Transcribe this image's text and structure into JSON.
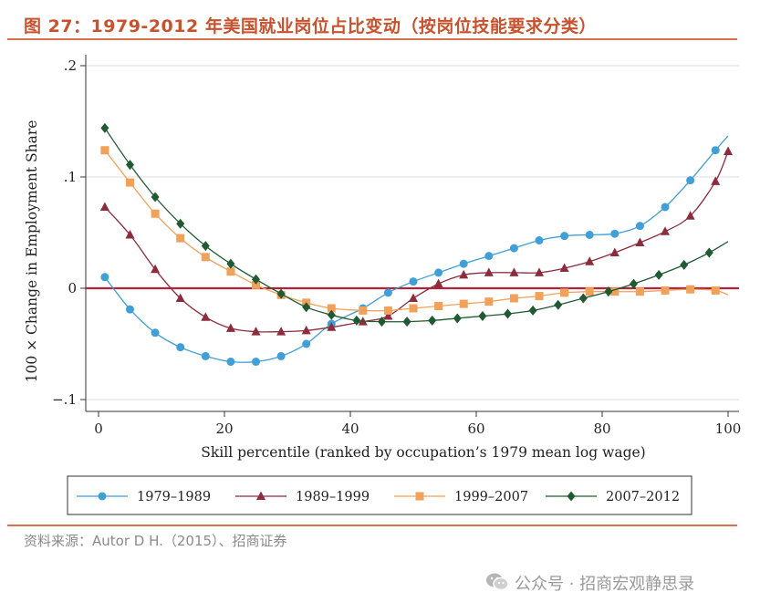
{
  "header": {
    "title": "图 27：1979-2012 年美国就业岗位占比变动（按岗位技能要求分类）"
  },
  "source": "资料来源：Autor D H.（2015）、招商证券",
  "watermark": {
    "icon": "wechat-icon",
    "text": "公众号 · 招商宏观静思录"
  },
  "colors": {
    "accent": "#c8522d",
    "rule": "#d9704f",
    "zero_line": "#b0233a"
  },
  "chart_data": {
    "type": "line",
    "title": "1979-2012 年美国就业岗位占比变动（按岗位技能要求分类）",
    "xlabel": "Skill percentile (ranked by occupation’s 1979 mean log wage)",
    "ylabel": "100 × Change in Employment Share",
    "xlim": [
      0,
      100
    ],
    "ylim": [
      -0.1,
      0.2
    ],
    "xticks": [
      0,
      20,
      40,
      60,
      80,
      100
    ],
    "yticks": [
      -0.1,
      0,
      0.1,
      0.2
    ],
    "ytick_labels": [
      "−.1",
      "0",
      ".1",
      ".2"
    ],
    "x": [
      1,
      5,
      9,
      13,
      17,
      21,
      25,
      29,
      33,
      37,
      41,
      45,
      49,
      53,
      57,
      61,
      65,
      69,
      73,
      77,
      81,
      85,
      89,
      93,
      97
    ],
    "series": [
      {
        "name": "1979–1989",
        "color": "#3f9fd6",
        "marker": "circle",
        "markers": [
          [
            1,
            0.01
          ],
          [
            5,
            -0.019
          ],
          [
            9,
            -0.04
          ],
          [
            13,
            -0.053
          ],
          [
            17,
            -0.061
          ],
          [
            21,
            -0.066
          ],
          [
            25,
            -0.066
          ],
          [
            29,
            -0.061
          ],
          [
            33,
            -0.05
          ],
          [
            37,
            -0.032
          ],
          [
            42,
            -0.018
          ],
          [
            46,
            -0.004
          ],
          [
            50,
            0.006
          ],
          [
            54,
            0.014
          ],
          [
            58,
            0.022
          ],
          [
            62,
            0.029
          ],
          [
            66,
            0.036
          ],
          [
            70,
            0.043
          ],
          [
            74,
            0.047
          ],
          [
            78,
            0.048
          ],
          [
            82,
            0.049
          ],
          [
            86,
            0.056
          ],
          [
            90,
            0.073
          ],
          [
            94,
            0.097
          ],
          [
            98,
            0.124
          ]
        ],
        "line_end": [
          100,
          0.137
        ]
      },
      {
        "name": "1989–1999",
        "color": "#8c2c3c",
        "marker": "triangle",
        "markers": [
          [
            1,
            0.073
          ],
          [
            5,
            0.048
          ],
          [
            9,
            0.017
          ],
          [
            13,
            -0.009
          ],
          [
            17,
            -0.026
          ],
          [
            21,
            -0.036
          ],
          [
            25,
            -0.039
          ],
          [
            29,
            -0.039
          ],
          [
            33,
            -0.038
          ],
          [
            37,
            -0.035
          ],
          [
            42,
            -0.03
          ],
          [
            46,
            -0.025
          ],
          [
            50,
            -0.009
          ],
          [
            54,
            0.004
          ],
          [
            58,
            0.012
          ],
          [
            62,
            0.014
          ],
          [
            66,
            0.014
          ],
          [
            70,
            0.014
          ],
          [
            74,
            0.018
          ],
          [
            78,
            0.024
          ],
          [
            82,
            0.032
          ],
          [
            86,
            0.041
          ],
          [
            90,
            0.051
          ],
          [
            94,
            0.065
          ],
          [
            98,
            0.096
          ],
          [
            100,
            0.123
          ]
        ]
      },
      {
        "name": "1999–2007",
        "color": "#f2a15a",
        "marker": "square",
        "markers": [
          [
            1,
            0.124
          ],
          [
            5,
            0.095
          ],
          [
            9,
            0.067
          ],
          [
            13,
            0.045
          ],
          [
            17,
            0.028
          ],
          [
            21,
            0.015
          ],
          [
            25,
            0.003
          ],
          [
            29,
            -0.006
          ],
          [
            33,
            -0.013
          ],
          [
            37,
            -0.018
          ],
          [
            42,
            -0.02
          ],
          [
            46,
            -0.02
          ],
          [
            50,
            -0.018
          ],
          [
            54,
            -0.016
          ],
          [
            58,
            -0.014
          ],
          [
            62,
            -0.012
          ],
          [
            66,
            -0.009
          ],
          [
            70,
            -0.007
          ],
          [
            74,
            -0.004
          ],
          [
            78,
            -0.003
          ],
          [
            82,
            -0.003
          ],
          [
            86,
            -0.003
          ],
          [
            90,
            -0.002
          ],
          [
            94,
            -0.001
          ],
          [
            98,
            -0.002
          ]
        ],
        "line_end": [
          100,
          -0.006
        ]
      },
      {
        "name": "2007–2012",
        "color": "#1f5a32",
        "marker": "diamond",
        "markers": [
          [
            1,
            0.144
          ],
          [
            5,
            0.111
          ],
          [
            9,
            0.082
          ],
          [
            13,
            0.058
          ],
          [
            17,
            0.038
          ],
          [
            21,
            0.022
          ],
          [
            25,
            0.008
          ],
          [
            29,
            -0.005
          ],
          [
            33,
            -0.017
          ],
          [
            37,
            -0.024
          ],
          [
            41,
            -0.029
          ],
          [
            45,
            -0.03
          ],
          [
            49,
            -0.03
          ],
          [
            53,
            -0.029
          ],
          [
            57,
            -0.027
          ],
          [
            61,
            -0.025
          ],
          [
            65,
            -0.023
          ],
          [
            69,
            -0.02
          ],
          [
            73,
            -0.015
          ],
          [
            77,
            -0.009
          ],
          [
            81,
            -0.003
          ],
          [
            85,
            0.004
          ],
          [
            89,
            0.012
          ],
          [
            93,
            0.021
          ],
          [
            97,
            0.032
          ]
        ],
        "line_end": [
          100,
          0.042
        ]
      }
    ],
    "zero_line": {
      "y": 0,
      "color": "#b0233a"
    },
    "legend": {
      "position": "bottom",
      "entries": [
        "1979–1989",
        "1989–1999",
        "1999–2007",
        "2007–2012"
      ]
    }
  }
}
